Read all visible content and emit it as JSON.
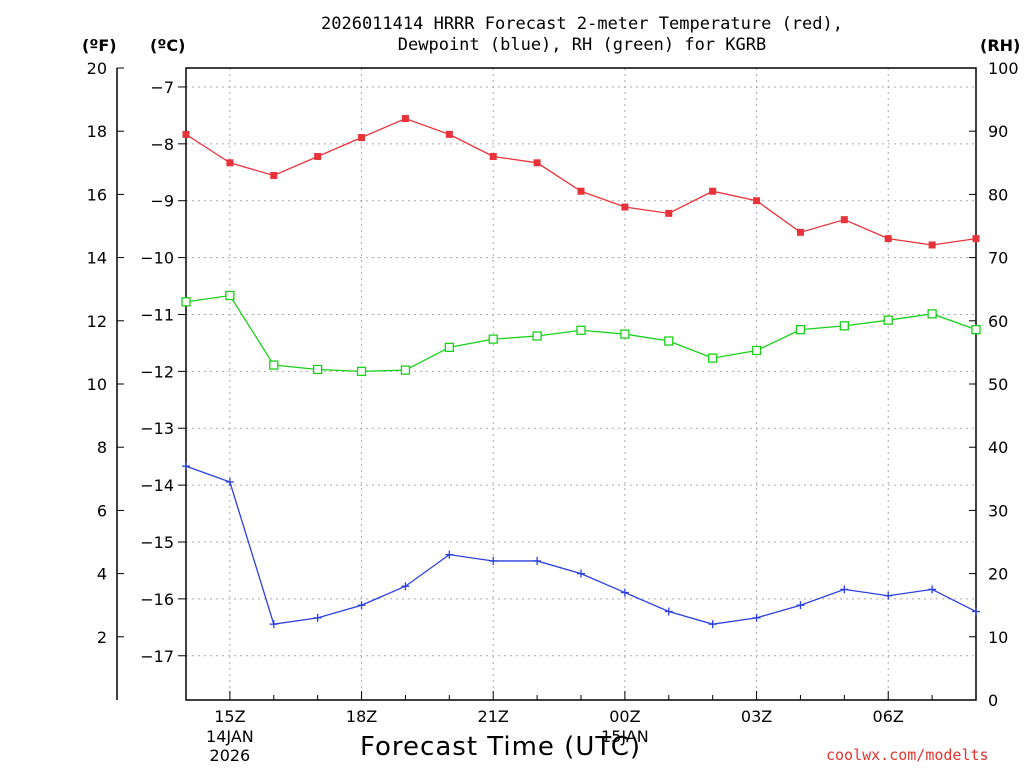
{
  "chart_data": {
    "type": "line",
    "title_line1": "2026011414 HRRR Forecast 2-meter Temperature (red),",
    "title_line2": "Dewpoint (blue), RH (green) for KGRB",
    "left_axis_f": {
      "label": "(ºF)",
      "range": [
        0,
        20
      ],
      "ticks": [
        "20",
        "18",
        "16",
        "14",
        "12",
        "10",
        "8",
        "6",
        "4",
        "2"
      ]
    },
    "left_axis_c": {
      "label": "(ºC)",
      "range": [
        -17.78,
        -6.67
      ],
      "ticks": [
        "−7",
        "−8",
        "−9",
        "−10",
        "−11",
        "−12",
        "−13",
        "−14",
        "−15",
        "−16",
        "−17"
      ]
    },
    "right_axis": {
      "label": "(RH)",
      "range": [
        0,
        100
      ],
      "ticks": [
        "100",
        "90",
        "80",
        "70",
        "60",
        "50",
        "40",
        "30",
        "20",
        "10",
        "0"
      ]
    },
    "xlabel": "Forecast Time (UTC)",
    "x_ticks": [
      {
        "hour": 15,
        "label": "15Z",
        "sub1": "14JAN",
        "sub2": "2026"
      },
      {
        "hour": 18,
        "label": "18Z",
        "sub1": "",
        "sub2": ""
      },
      {
        "hour": 21,
        "label": "21Z",
        "sub1": "",
        "sub2": ""
      },
      {
        "hour": 24,
        "label": "00Z",
        "sub1": "15JAN",
        "sub2": ""
      },
      {
        "hour": 27,
        "label": "03Z",
        "sub1": "",
        "sub2": ""
      },
      {
        "hour": 30,
        "label": "06Z",
        "sub1": "",
        "sub2": ""
      }
    ],
    "x_range": [
      14,
      32
    ],
    "hours": [
      14,
      15,
      16,
      17,
      18,
      19,
      20,
      21,
      22,
      23,
      24,
      25,
      26,
      27,
      28,
      29,
      30,
      31,
      32
    ],
    "series": [
      {
        "name": "Temperature",
        "units": "F",
        "color": "#e8333a",
        "marker": "filled-square",
        "values": [
          17.9,
          17.0,
          16.6,
          17.2,
          17.8,
          18.4,
          17.9,
          17.2,
          17.0,
          16.1,
          15.6,
          15.4,
          16.1,
          15.8,
          14.8,
          15.2,
          14.6,
          14.4,
          14.6
        ]
      },
      {
        "name": "Dewpoint",
        "units": "F",
        "color": "#2b3fe0",
        "marker": "plus",
        "values": [
          7.4,
          6.9,
          2.4,
          2.6,
          3.0,
          3.6,
          4.6,
          4.4,
          4.4,
          4.0,
          3.4,
          2.8,
          2.4,
          2.6,
          3.0,
          3.5,
          3.3,
          3.5,
          2.8
        ]
      },
      {
        "name": "RH",
        "units": "%",
        "color": "#19d119",
        "marker": "open-square",
        "values": [
          63,
          64,
          53,
          52.3,
          52,
          52.2,
          55.8,
          57.1,
          57.6,
          58.5,
          57.9,
          56.8,
          54.1,
          55.3,
          58.6,
          59.2,
          60.1,
          61.1,
          58.6
        ]
      }
    ],
    "grid": true
  },
  "credit": "coolwx.com/modelts"
}
